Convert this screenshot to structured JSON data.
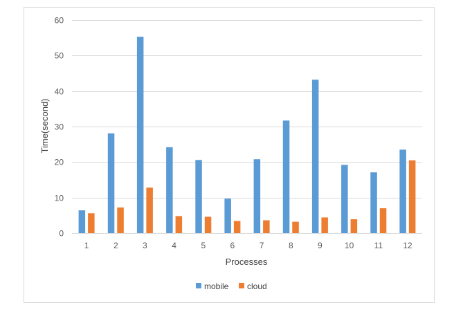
{
  "chart_data": {
    "type": "bar",
    "title": "",
    "xlabel": "Processes",
    "ylabel": "Time(second)",
    "categories": [
      "1",
      "2",
      "3",
      "4",
      "5",
      "6",
      "7",
      "8",
      "9",
      "10",
      "11",
      "12"
    ],
    "series": [
      {
        "name": "mobile",
        "color": "#5b9bd5",
        "values": [
          6.4,
          28.1,
          55.3,
          24.2,
          20.6,
          9.7,
          20.8,
          31.7,
          43.2,
          19.2,
          17.1,
          23.5
        ]
      },
      {
        "name": "cloud",
        "color": "#ed7d31",
        "values": [
          5.6,
          7.2,
          12.8,
          4.8,
          4.6,
          3.4,
          3.6,
          3.2,
          4.4,
          3.9,
          7.0,
          20.5
        ]
      }
    ],
    "ylim": [
      0,
      60
    ],
    "yticks": [
      "0",
      "10",
      "20",
      "30",
      "40",
      "50",
      "60"
    ],
    "grid": true,
    "legend_position": "bottom",
    "gridline_color": "#d9d9d9"
  }
}
